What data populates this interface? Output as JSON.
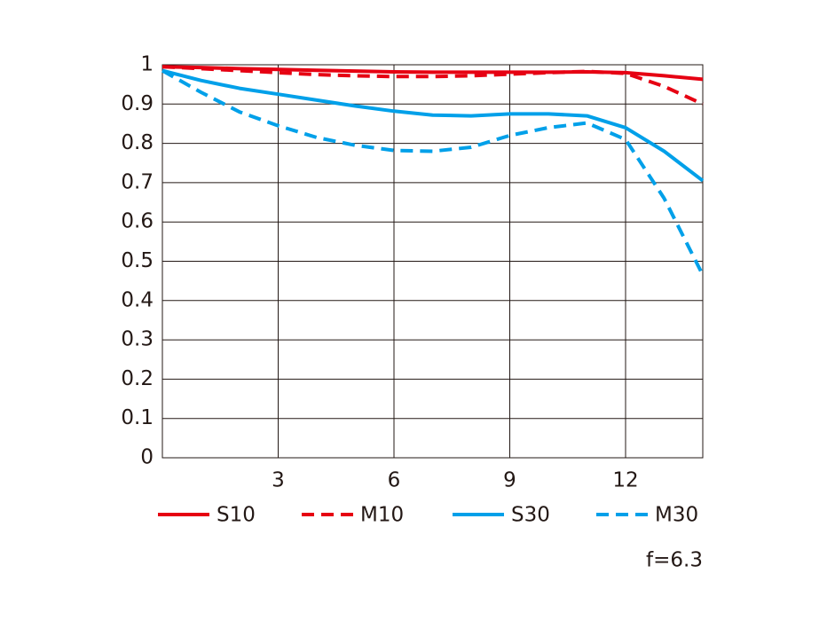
{
  "chart_data": {
    "type": "line",
    "x": [
      0,
      1,
      2,
      3,
      4,
      5,
      6,
      7,
      8,
      9,
      10,
      11,
      12,
      13,
      14
    ],
    "series": [
      {
        "name": "S10",
        "color": "#e60012",
        "dashed": false,
        "values": [
          0.995,
          0.993,
          0.99,
          0.988,
          0.986,
          0.984,
          0.982,
          0.981,
          0.981,
          0.981,
          0.981,
          0.982,
          0.98,
          0.972,
          0.963
        ]
      },
      {
        "name": "M10",
        "color": "#e60012",
        "dashed": true,
        "values": [
          0.995,
          0.99,
          0.985,
          0.98,
          0.975,
          0.972,
          0.97,
          0.97,
          0.972,
          0.976,
          0.98,
          0.983,
          0.978,
          0.945,
          0.9
        ]
      },
      {
        "name": "S30",
        "color": "#00a0e9",
        "dashed": false,
        "values": [
          0.985,
          0.96,
          0.94,
          0.925,
          0.91,
          0.895,
          0.882,
          0.872,
          0.87,
          0.875,
          0.875,
          0.87,
          0.84,
          0.78,
          0.705
        ]
      },
      {
        "name": "M30",
        "color": "#00a0e9",
        "dashed": true,
        "values": [
          0.985,
          0.93,
          0.88,
          0.845,
          0.815,
          0.795,
          0.782,
          0.78,
          0.79,
          0.82,
          0.84,
          0.852,
          0.81,
          0.66,
          0.465
        ]
      }
    ],
    "xlim": [
      0,
      14
    ],
    "xticks": [
      3,
      6,
      9,
      12
    ],
    "ylim": [
      0,
      1
    ],
    "yticks": [
      0,
      0.1,
      0.2,
      0.3,
      0.4,
      0.5,
      0.6,
      0.7,
      0.8,
      0.9,
      1
    ],
    "grid": true,
    "annotation": "f=6.3"
  }
}
